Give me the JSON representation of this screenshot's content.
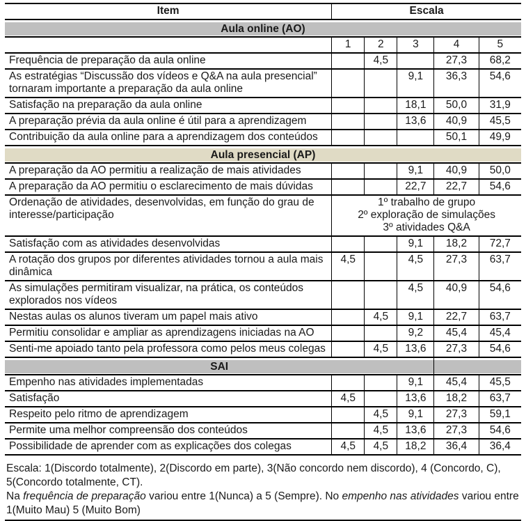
{
  "colors": {
    "banner_gray": "#bfbfbf",
    "banner_tan": "#e0dbc5",
    "border": "#000000"
  },
  "table": {
    "header": {
      "item": "Item",
      "escala": "Escala"
    },
    "scale_columns": [
      "1",
      "2",
      "3",
      "4",
      "5"
    ],
    "sections": [
      {
        "title": "Aula online (AO)",
        "banner_bg": "#bfbfbf",
        "show_scale_header": true,
        "banner_split": false,
        "rows": [
          {
            "item": "Frequência de preparação da aula online",
            "values": [
              "",
              "4,5",
              "",
              "27,3",
              "68,2"
            ]
          },
          {
            "item": "As estratégias “Discussão dos vídeos e Q&A na aula presencial” tornaram importante a preparação da aula online",
            "values": [
              "",
              "",
              "9,1",
              "36,3",
              "54,6"
            ]
          },
          {
            "item": "Satisfação na preparação da aula online",
            "values": [
              "",
              "",
              "18,1",
              "50,0",
              "31,9"
            ]
          },
          {
            "item": "A preparação prévia da aula online é útil para a aprendizagem",
            "values": [
              "",
              "",
              "13,6",
              "40,9",
              "45,5"
            ]
          },
          {
            "item": "Contribuição da aula online para a aprendizagem dos conteúdos",
            "values": [
              "",
              "",
              "",
              "50,1",
              "49,9"
            ]
          }
        ]
      },
      {
        "title": "Aula presencial (AP)",
        "banner_bg": "#e0dbc5",
        "show_scale_header": false,
        "banner_split": false,
        "rows": [
          {
            "item": "A preparação da AO permitiu a realização de mais atividades",
            "values": [
              "",
              "",
              "9,1",
              "40,9",
              "50,0"
            ]
          },
          {
            "item": "A preparação da AO permitiu o esclarecimento de mais dúvidas",
            "values": [
              "",
              "",
              "22,7",
              "22,7",
              "54,6"
            ]
          },
          {
            "item": "Ordenação de atividades, desenvolvidas, em função do grau de interesse/participação",
            "merged_note": [
              "1º trabalho de grupo",
              "2º exploração de simulações",
              "3º atividades Q&A"
            ]
          },
          {
            "item": "Satisfação com as atividades desenvolvidas",
            "values": [
              "",
              "",
              "9,1",
              "18,2",
              "72,7"
            ]
          },
          {
            "item": "A rotação dos grupos por diferentes atividades tornou a aula mais dinâmica",
            "values": [
              "4,5",
              "",
              "4,5",
              "27,3",
              "63,7"
            ]
          },
          {
            "item": "As simulações permitiram visualizar, na prática, os conteúdos explorados nos vídeos",
            "values": [
              "",
              "",
              "4,5",
              "40,9",
              "54,6"
            ]
          },
          {
            "item": "Nestas aulas os alunos tiveram um papel mais ativo",
            "values": [
              "",
              "4,5",
              "9,1",
              "22,7",
              "63,7"
            ]
          },
          {
            "item": "Permitiu consolidar e ampliar as aprendizagens iniciadas na AO",
            "values": [
              "",
              "",
              "9,2",
              "45,4",
              "45,4"
            ]
          },
          {
            "item": "Senti-me apoiado tanto pela professora como pelos meus colegas",
            "values": [
              "",
              "4,5",
              "13,6",
              "27,3",
              "54,6"
            ]
          }
        ]
      },
      {
        "title": "SAI",
        "banner_bg": "#bfbfbf",
        "show_scale_header": false,
        "banner_split": true,
        "rows": [
          {
            "item": "Empenho nas atividades implementadas",
            "values": [
              "",
              "",
              "9,1",
              "45,4",
              "45,5"
            ]
          },
          {
            "item": "Satisfação",
            "values": [
              "4,5",
              "",
              "13,6",
              "18,2",
              "63,7"
            ]
          },
          {
            "item": "Respeito pelo ritmo de aprendizagem",
            "values": [
              "",
              "4,5",
              "9,1",
              "27,3",
              "59,1"
            ]
          },
          {
            "item": "Permite uma melhor compreensão dos conteúdos",
            "values": [
              "",
              "4,5",
              "13,6",
              "27,3",
              "54,6"
            ]
          },
          {
            "item": "Possibilidade de aprender com as explicações dos colegas",
            "values": [
              "4,5",
              "4,5",
              "18,2",
              "36,4",
              "36,4"
            ]
          }
        ]
      }
    ]
  },
  "footer": {
    "line1": "Escala: 1(Discordo totalmente), 2(Discordo em parte), 3(Não concordo nem discordo), 4 (Concordo, C), 5(Concordo totalmente, CT).",
    "note": {
      "a": "Na ",
      "b": "frequência de preparação",
      "c": " variou entre 1(Nunca) a 5 (Sempre). No ",
      "d": "empenho nas atividades",
      "e": " variou entre 1(Muito Mau) 5 (Muito Bom)"
    }
  }
}
